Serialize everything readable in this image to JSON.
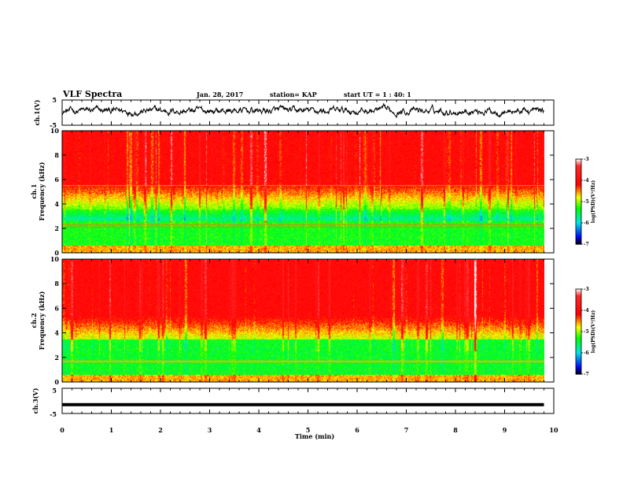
{
  "header": {
    "title": "VLF Spectra",
    "date": "Jan. 28, 2017",
    "station": "station= KAP",
    "start": "start  UT =  1 : 40: 1"
  },
  "chart_data": [
    {
      "type": "line",
      "ylabel": "ch.1(V)",
      "ylim": [
        -5,
        5
      ],
      "yticks": [
        -5,
        5
      ],
      "description_free": true,
      "signal_range": [
        -2.5,
        3.5
      ]
    },
    {
      "type": "heatmap",
      "ylabel_top": "ch.1",
      "ylabel": "Frequency  (kHz)",
      "ylim": [
        0,
        10
      ],
      "yticks": [
        0,
        2,
        4,
        6,
        8,
        10
      ],
      "colorbar": {
        "label": "log(PSD)(V²/Hz)",
        "range": [
          -7,
          -3
        ],
        "ticks": [
          -7,
          -6,
          -5,
          -4,
          -3
        ]
      }
    },
    {
      "type": "heatmap",
      "ylabel_top": "ch.2",
      "ylabel": "Frequency  (kHz)",
      "ylim": [
        0,
        10
      ],
      "yticks": [
        0,
        2,
        4,
        6,
        8,
        10
      ],
      "colorbar": {
        "label": "log(PSD)(V²/Hz)",
        "range": [
          -7,
          -3
        ],
        "ticks": [
          -7,
          -6,
          -5,
          -4,
          -3
        ]
      }
    },
    {
      "type": "line",
      "ylabel": "ch.3(V)",
      "ylim": [
        -5,
        5
      ],
      "yticks": [
        -5,
        5
      ],
      "signal_value": -1.5
    }
  ],
  "xaxis": {
    "label": "Time  (min)",
    "range": [
      0,
      10
    ],
    "ticks": [
      0,
      1,
      2,
      3,
      4,
      5,
      6,
      7,
      8,
      9,
      10
    ]
  },
  "colors": {
    "lowest": "#000000",
    "low": "#0000ff",
    "mid_low": "#00e5e5",
    "mid": "#00ff00",
    "mid_high": "#ffff00",
    "high": "#ff0000",
    "highest": "#ffffff"
  }
}
